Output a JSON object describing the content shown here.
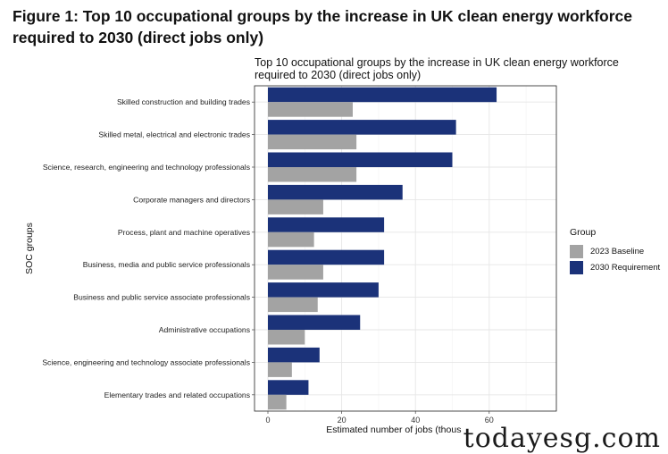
{
  "figure": {
    "title": "Figure 1: Top 10 occupational groups by the increase in UK clean energy workforce required to 2030 (direct jobs only)"
  },
  "chart_data": {
    "type": "bar",
    "orientation": "horizontal",
    "title": "Top 10 occupational groups by the increase in UK clean energy workforce required to 2030 (direct jobs only)",
    "xlabel": "Estimated number of jobs (thousands)",
    "ylabel": "SOC groups",
    "xlim": [
      0,
      78
    ],
    "xticks": [
      0,
      20,
      40,
      60
    ],
    "grid": true,
    "legend_title": "Group",
    "legend_position": "right",
    "categories": [
      "Skilled construction and building trades",
      "Skilled metal, electrical and electronic trades",
      "Science, research, engineering and technology professionals",
      "Corporate managers and directors",
      "Process, plant and machine operatives",
      "Business, media and public service professionals",
      "Business and public service associate professionals",
      "Administrative occupations",
      "Science, engineering and technology associate professionals",
      "Elementary trades and related occupations"
    ],
    "series": [
      {
        "name": "2030 Requirement",
        "color": "#1b3279",
        "values": [
          62,
          51,
          50,
          36.5,
          31.5,
          31.5,
          30,
          25,
          14,
          11
        ]
      },
      {
        "name": "2023 Baseline",
        "color": "#a3a3a3",
        "values": [
          23,
          24,
          24,
          15,
          12.5,
          15,
          13.5,
          10,
          6.5,
          5
        ]
      }
    ]
  },
  "watermark": "todayesg.com"
}
